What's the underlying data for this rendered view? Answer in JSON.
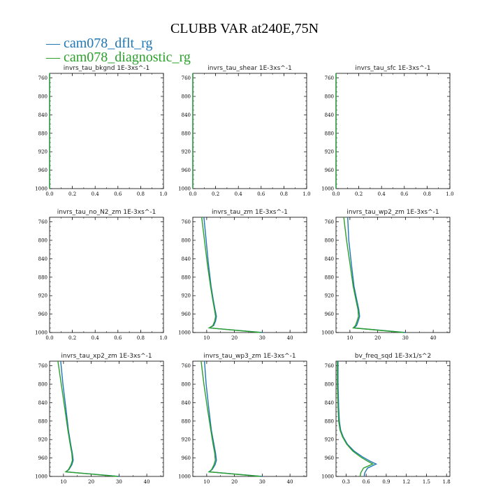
{
  "title": "CLUBB VAR at240E,75N",
  "legend": [
    {
      "label": "cam078_dflt_rg",
      "color": "#1f77b4"
    },
    {
      "label": "cam078_diagnostic_rg",
      "color": "#2ca02c"
    }
  ],
  "chart_data": [
    {
      "type": "line",
      "title": "invrs_tau_bkgnd   1E-3xs^-1",
      "xlim": [
        0,
        1.0
      ],
      "ylim": [
        1000,
        750
      ],
      "xticks": [
        "0.0",
        "0.2",
        "0.4",
        "0.6",
        "0.8",
        "1.0"
      ],
      "xtick_values": [
        0,
        0.2,
        0.4,
        0.6,
        0.8,
        1.0
      ],
      "yticks": [
        "760",
        "800",
        "840",
        "880",
        "920",
        "960",
        "1000"
      ],
      "ytick_values": [
        760,
        800,
        840,
        880,
        920,
        960,
        1000
      ],
      "series": [
        {
          "name": "cam078_dflt_rg",
          "x": [
            0,
            0
          ],
          "y": [
            750,
            1000
          ]
        },
        {
          "name": "cam078_diagnostic_rg",
          "x": [
            0,
            0
          ],
          "y": [
            750,
            1000
          ]
        }
      ]
    },
    {
      "type": "line",
      "title": "invrs_tau_shear   1E-3xs^-1",
      "xlim": [
        0,
        1.0
      ],
      "ylim": [
        1000,
        750
      ],
      "xticks": [
        "0.0",
        "0.2",
        "0.4",
        "0.6",
        "0.8",
        "1.0"
      ],
      "xtick_values": [
        0,
        0.2,
        0.4,
        0.6,
        0.8,
        1.0
      ],
      "yticks": [
        "760",
        "800",
        "840",
        "880",
        "920",
        "960",
        "1000"
      ],
      "ytick_values": [
        760,
        800,
        840,
        880,
        920,
        960,
        1000
      ],
      "series": [
        {
          "name": "cam078_dflt_rg",
          "x": [
            0,
            0
          ],
          "y": [
            750,
            1000
          ]
        },
        {
          "name": "cam078_diagnostic_rg",
          "x": [
            0,
            0
          ],
          "y": [
            750,
            1000
          ]
        }
      ]
    },
    {
      "type": "line",
      "title": "invrs_tau_sfc   1E-3xs^-1",
      "xlim": [
        0,
        1.0
      ],
      "ylim": [
        1000,
        750
      ],
      "xticks": [
        "0.0",
        "0.2",
        "0.4",
        "0.6",
        "0.8",
        "1.0"
      ],
      "xtick_values": [
        0,
        0.2,
        0.4,
        0.6,
        0.8,
        1.0
      ],
      "yticks": [
        "760",
        "800",
        "840",
        "880",
        "920",
        "960",
        "1000"
      ],
      "ytick_values": [
        760,
        800,
        840,
        880,
        920,
        960,
        1000
      ],
      "series": [
        {
          "name": "cam078_dflt_rg",
          "x": [
            0,
            0
          ],
          "y": [
            750,
            1000
          ]
        },
        {
          "name": "cam078_diagnostic_rg",
          "x": [
            0,
            0
          ],
          "y": [
            750,
            1000
          ]
        }
      ]
    },
    {
      "type": "line",
      "title": "invrs_tau_no_N2_zm   1E-3xs^-1",
      "xlim": [
        0,
        1.0
      ],
      "ylim": [
        1000,
        750
      ],
      "xticks": [
        "0.0",
        "0.2",
        "0.4",
        "0.6",
        "0.8",
        "1.0"
      ],
      "xtick_values": [
        0,
        0.2,
        0.4,
        0.6,
        0.8,
        1.0
      ],
      "yticks": [
        "760",
        "800",
        "840",
        "880",
        "920",
        "960",
        "1000"
      ],
      "ytick_values": [
        760,
        800,
        840,
        880,
        920,
        960,
        1000
      ],
      "series": []
    },
    {
      "type": "line",
      "title": "invrs_tau_zm   1E-3xs^-1",
      "xlim": [
        5,
        46
      ],
      "ylim": [
        1000,
        750
      ],
      "xticks": [
        "10",
        "20",
        "30",
        "40"
      ],
      "xtick_values": [
        10,
        20,
        30,
        40
      ],
      "yticks": [
        "760",
        "800",
        "840",
        "880",
        "920",
        "960",
        "1000"
      ],
      "ytick_values": [
        760,
        800,
        840,
        880,
        920,
        960,
        1000
      ],
      "series": [
        {
          "name": "cam078_dflt_rg",
          "x": [
            9.0,
            9.8,
            10.6,
            11.6,
            12.4,
            13.0,
            13.5,
            13.2,
            12.5,
            11.0,
            30.0
          ],
          "y": [
            750,
            800,
            850,
            900,
            930,
            950,
            965,
            975,
            985,
            990,
            1000
          ]
        },
        {
          "name": "cam078_diagnostic_rg",
          "x": [
            8.2,
            9.2,
            10.2,
            11.4,
            12.2,
            12.8,
            13.2,
            12.9,
            12.2,
            10.9,
            29.5
          ],
          "y": [
            750,
            800,
            850,
            900,
            930,
            950,
            965,
            975,
            985,
            990,
            1000
          ]
        }
      ]
    },
    {
      "type": "line",
      "title": "invrs_tau_wp2_zm   1E-3xs^-1",
      "xlim": [
        5,
        46
      ],
      "ylim": [
        1000,
        750
      ],
      "xticks": [
        "10",
        "20",
        "30",
        "40"
      ],
      "xtick_values": [
        10,
        20,
        30,
        40
      ],
      "yticks": [
        "760",
        "800",
        "840",
        "880",
        "920",
        "960",
        "1000"
      ],
      "ytick_values": [
        760,
        800,
        840,
        880,
        920,
        960,
        1000
      ],
      "series": [
        {
          "name": "cam078_dflt_rg",
          "x": [
            9.2,
            9.6,
            10.5,
            11.5,
            12.5,
            13.2,
            13.5,
            13.0,
            12.4,
            11.5,
            30.0
          ],
          "y": [
            750,
            800,
            850,
            900,
            930,
            950,
            965,
            975,
            985,
            990,
            1000
          ]
        },
        {
          "name": "cam078_diagnostic_rg",
          "x": [
            7.8,
            8.8,
            10.0,
            11.2,
            12.2,
            12.9,
            13.1,
            12.6,
            12.0,
            11.2,
            29.5
          ],
          "y": [
            750,
            800,
            850,
            900,
            930,
            950,
            965,
            975,
            985,
            990,
            1000
          ]
        }
      ]
    },
    {
      "type": "line",
      "title": "invrs_tau_xp2_zm   1E-3xs^-1",
      "xlim": [
        5,
        46
      ],
      "ylim": [
        1000,
        750
      ],
      "xticks": [
        "10",
        "20",
        "30",
        "40"
      ],
      "xtick_values": [
        10,
        20,
        30,
        40
      ],
      "yticks": [
        "760",
        "800",
        "840",
        "880",
        "920",
        "960",
        "1000"
      ],
      "ytick_values": [
        760,
        800,
        840,
        880,
        920,
        960,
        1000
      ],
      "series": [
        {
          "name": "cam078_dflt_rg",
          "x": [
            9.0,
            9.8,
            10.8,
            11.8,
            12.6,
            13.2,
            13.5,
            13.0,
            12.0,
            11.0,
            30.0
          ],
          "y": [
            750,
            800,
            850,
            900,
            930,
            950,
            965,
            975,
            985,
            990,
            1000
          ]
        },
        {
          "name": "cam078_diagnostic_rg",
          "x": [
            8.0,
            9.2,
            10.4,
            11.6,
            12.4,
            13.0,
            13.2,
            12.7,
            11.8,
            10.8,
            29.5
          ],
          "y": [
            750,
            800,
            850,
            900,
            930,
            950,
            965,
            975,
            985,
            990,
            1000
          ]
        }
      ]
    },
    {
      "type": "line",
      "title": "invrs_tau_wp3_zm   1E-3xs^-1",
      "xlim": [
        5,
        46
      ],
      "ylim": [
        1000,
        750
      ],
      "xticks": [
        "10",
        "20",
        "30",
        "40"
      ],
      "xtick_values": [
        10,
        20,
        30,
        40
      ],
      "yticks": [
        "760",
        "800",
        "840",
        "880",
        "920",
        "960",
        "1000"
      ],
      "ytick_values": [
        760,
        800,
        840,
        880,
        920,
        960,
        1000
      ],
      "series": [
        {
          "name": "cam078_dflt_rg",
          "x": [
            9.2,
            9.8,
            10.7,
            11.7,
            12.6,
            13.2,
            13.5,
            13.0,
            12.0,
            11.0,
            30.0
          ],
          "y": [
            750,
            800,
            850,
            900,
            930,
            950,
            965,
            975,
            985,
            990,
            1000
          ]
        },
        {
          "name": "cam078_diagnostic_rg",
          "x": [
            8.0,
            9.0,
            10.2,
            11.5,
            12.3,
            12.9,
            13.1,
            12.6,
            11.8,
            10.8,
            29.5
          ],
          "y": [
            750,
            800,
            850,
            900,
            930,
            950,
            965,
            975,
            985,
            990,
            1000
          ]
        }
      ]
    },
    {
      "type": "line",
      "title": "bv_freq_sqd   1E-3x1/s^2",
      "xlim": [
        0.15,
        1.85
      ],
      "ylim": [
        1000,
        750
      ],
      "xticks": [
        "0.3",
        "0.6",
        "0.9",
        "1.2",
        "1.5",
        "1.8"
      ],
      "xtick_values": [
        0.3,
        0.6,
        0.9,
        1.2,
        1.5,
        1.8
      ],
      "yticks": [
        "760",
        "800",
        "840",
        "880",
        "920",
        "960",
        "1000"
      ],
      "ytick_values": [
        760,
        800,
        840,
        880,
        920,
        960,
        1000
      ],
      "series": [
        {
          "name": "cam078_dflt_rg",
          "x": [
            0.18,
            0.18,
            0.19,
            0.2,
            0.22,
            0.26,
            0.32,
            0.42,
            0.55,
            0.66,
            0.75,
            0.62,
            0.58,
            0.57
          ],
          "y": [
            750,
            800,
            850,
            880,
            900,
            915,
            930,
            945,
            958,
            967,
            973,
            982,
            992,
            1000
          ]
        },
        {
          "name": "cam078_diagnostic_rg",
          "x": [
            0.17,
            0.17,
            0.18,
            0.19,
            0.21,
            0.25,
            0.31,
            0.4,
            0.52,
            0.62,
            0.7,
            0.56,
            0.52,
            0.51
          ],
          "y": [
            750,
            800,
            850,
            880,
            900,
            915,
            930,
            945,
            958,
            967,
            973,
            982,
            992,
            1000
          ]
        }
      ]
    }
  ]
}
